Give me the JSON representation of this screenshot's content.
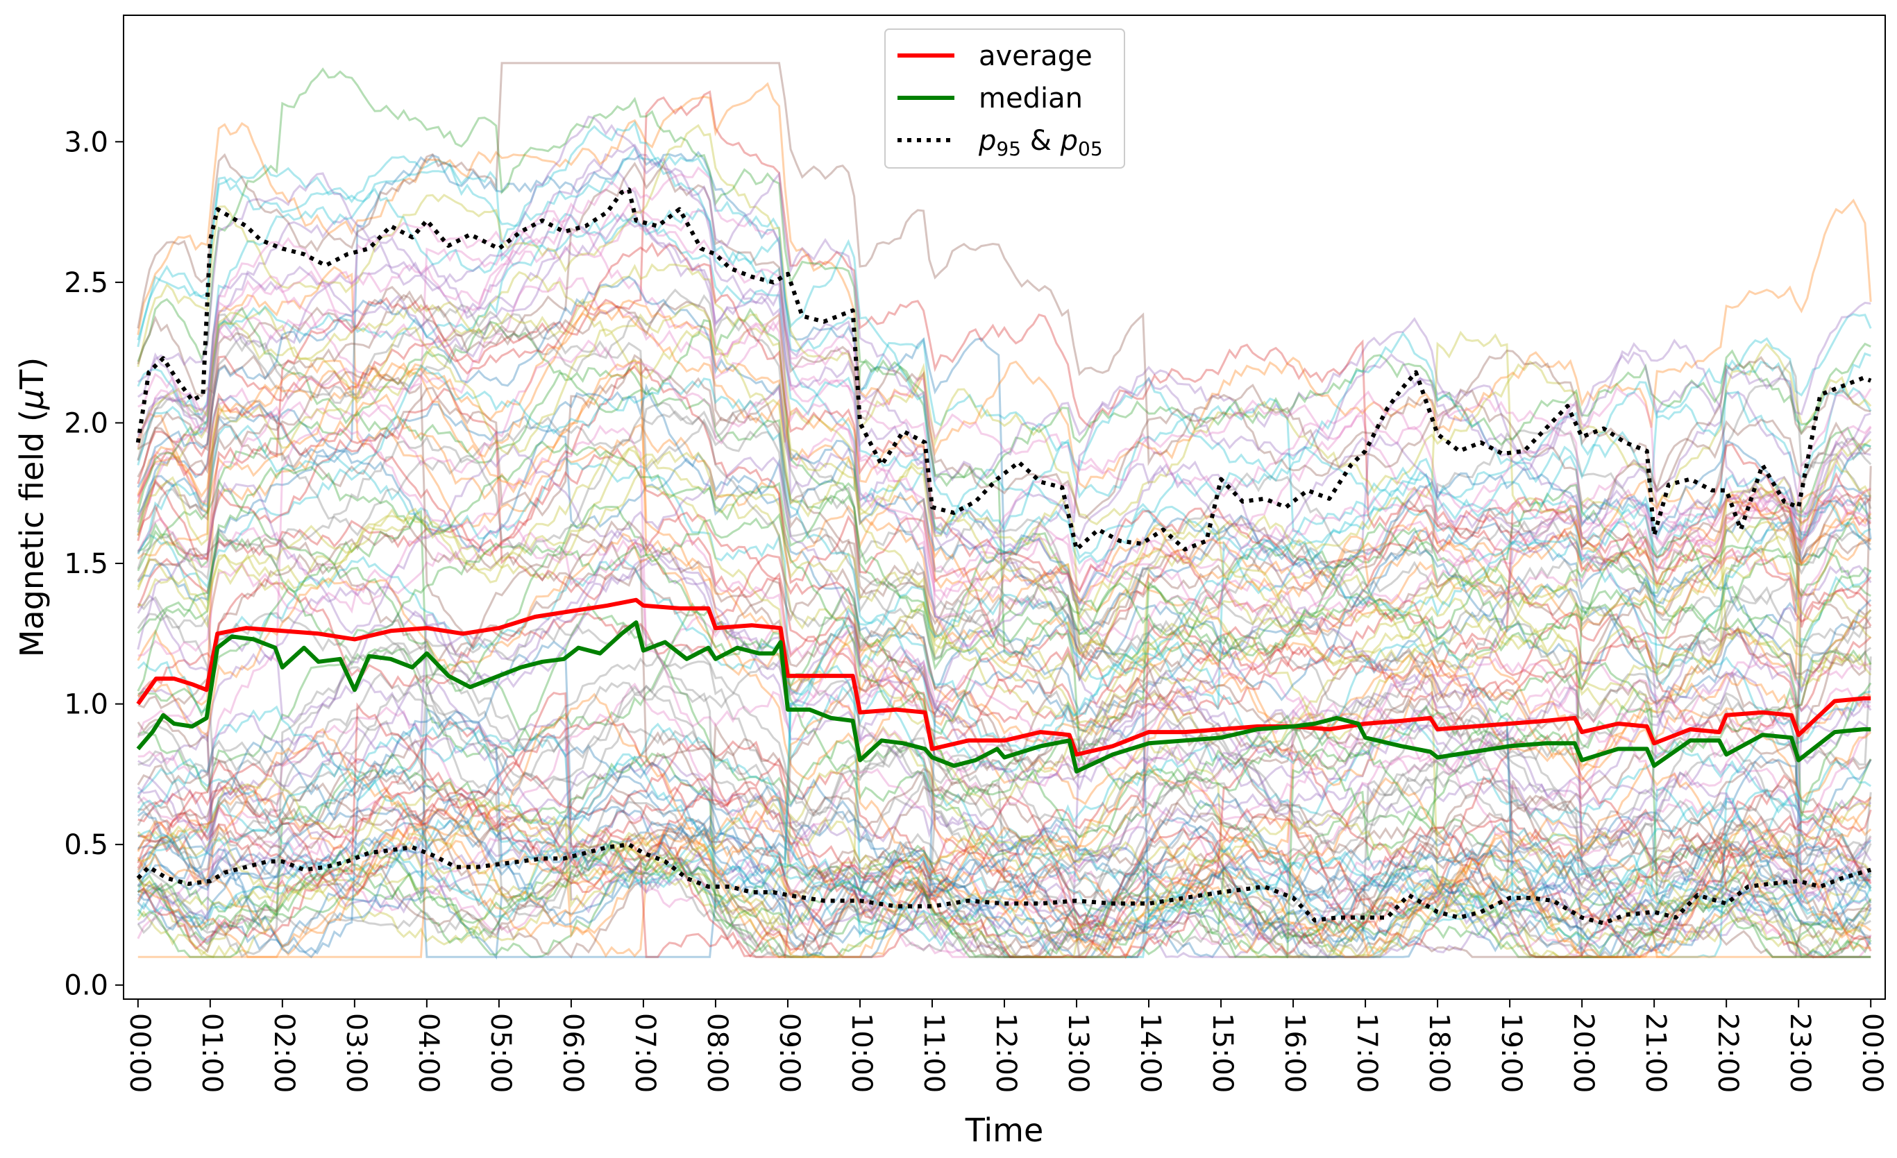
{
  "chart_data": {
    "type": "line",
    "xlabel": "Time",
    "ylabel": "Magnetic field (µT)",
    "ylabel_parts": {
      "pre": "Magnetic field (",
      "mu": "µ",
      "post": "T)"
    },
    "ylim": [
      -0.05,
      3.45
    ],
    "yticks": [
      0.0,
      0.5,
      1.0,
      1.5,
      2.0,
      2.5,
      3.0
    ],
    "ytick_labels": [
      "0.0",
      "0.5",
      "1.0",
      "1.5",
      "2.0",
      "2.5",
      "3.0"
    ],
    "xlim": [
      -0.2,
      24.2
    ],
    "xticks": [
      0,
      1,
      2,
      3,
      4,
      5,
      6,
      7,
      8,
      9,
      10,
      11,
      12,
      13,
      14,
      15,
      16,
      17,
      18,
      19,
      20,
      21,
      22,
      23,
      24
    ],
    "xtick_labels": [
      "00:00",
      "01:00",
      "02:00",
      "03:00",
      "04:00",
      "05:00",
      "06:00",
      "07:00",
      "08:00",
      "09:00",
      "10:00",
      "11:00",
      "12:00",
      "13:00",
      "14:00",
      "15:00",
      "16:00",
      "17:00",
      "18:00",
      "19:00",
      "20:00",
      "21:00",
      "22:00",
      "23:00",
      "00:00"
    ],
    "legend_position": "upper-center",
    "legend": [
      {
        "label": "average",
        "color": "#ff0000",
        "style": "solid"
      },
      {
        "label": "median",
        "color": "#008000",
        "style": "solid"
      },
      {
        "label": "p95 & p05",
        "display": {
          "p1": "p",
          "s1": "95",
          "amp": " & ",
          "p2": "p",
          "s2": "05"
        },
        "color": "#000000",
        "style": "dotted"
      }
    ],
    "background_series": {
      "count": 120,
      "alpha": 0.35,
      "colors": [
        "#1f77b4",
        "#ff7f0e",
        "#2ca02c",
        "#d62728",
        "#9467bd",
        "#8c564b",
        "#e377c2",
        "#7f7f7f",
        "#bcbd22",
        "#17becf"
      ]
    },
    "series": [
      {
        "name": "average",
        "color": "#ff0000",
        "x": [
          0,
          0.25,
          0.5,
          0.75,
          0.95,
          1.1,
          1.5,
          2.0,
          2.5,
          3.0,
          3.5,
          4.0,
          4.5,
          5.0,
          5.5,
          6.0,
          6.5,
          6.9,
          7.0,
          7.5,
          7.9,
          8.0,
          8.5,
          8.9,
          9.0,
          9.5,
          9.9,
          10.0,
          10.5,
          10.9,
          11.0,
          11.5,
          12.0,
          12.5,
          12.9,
          13.0,
          13.5,
          14.0,
          14.5,
          15.0,
          15.5,
          16.0,
          16.5,
          17.0,
          17.5,
          17.9,
          18.0,
          18.5,
          19.0,
          19.5,
          19.9,
          20.0,
          20.5,
          20.9,
          21.0,
          21.5,
          21.9,
          22.0,
          22.5,
          22.9,
          23.0,
          23.5,
          23.9,
          24.0
        ],
        "values": [
          1.0,
          1.09,
          1.09,
          1.07,
          1.05,
          1.25,
          1.27,
          1.26,
          1.25,
          1.23,
          1.26,
          1.27,
          1.25,
          1.27,
          1.31,
          1.33,
          1.35,
          1.37,
          1.35,
          1.34,
          1.34,
          1.27,
          1.28,
          1.27,
          1.1,
          1.1,
          1.1,
          0.97,
          0.98,
          0.97,
          0.84,
          0.87,
          0.87,
          0.9,
          0.89,
          0.82,
          0.85,
          0.9,
          0.9,
          0.91,
          0.92,
          0.92,
          0.91,
          0.93,
          0.94,
          0.95,
          0.91,
          0.92,
          0.93,
          0.94,
          0.95,
          0.9,
          0.93,
          0.92,
          0.86,
          0.91,
          0.9,
          0.96,
          0.97,
          0.96,
          0.89,
          1.01,
          1.02,
          1.02
        ]
      },
      {
        "name": "median",
        "color": "#008000",
        "x": [
          0,
          0.2,
          0.35,
          0.5,
          0.75,
          0.95,
          1.1,
          1.3,
          1.6,
          1.9,
          2.0,
          2.3,
          2.5,
          2.8,
          3.0,
          3.2,
          3.5,
          3.8,
          4.0,
          4.3,
          4.6,
          4.8,
          5.0,
          5.3,
          5.6,
          5.9,
          6.1,
          6.4,
          6.7,
          6.9,
          7.0,
          7.3,
          7.6,
          7.9,
          8.0,
          8.3,
          8.6,
          8.8,
          8.9,
          9.0,
          9.3,
          9.6,
          9.9,
          10.0,
          10.3,
          10.6,
          10.9,
          11.0,
          11.3,
          11.6,
          11.9,
          12.0,
          12.5,
          12.9,
          13.0,
          13.5,
          14.0,
          14.5,
          15.0,
          15.5,
          16.0,
          16.3,
          16.6,
          16.9,
          17.0,
          17.5,
          17.9,
          18.0,
          18.5,
          19.0,
          19.5,
          19.9,
          20.0,
          20.5,
          20.9,
          21.0,
          21.5,
          21.9,
          22.0,
          22.5,
          22.9,
          23.0,
          23.5,
          23.9,
          24.0
        ],
        "values": [
          0.84,
          0.9,
          0.96,
          0.93,
          0.92,
          0.95,
          1.2,
          1.24,
          1.23,
          1.2,
          1.13,
          1.2,
          1.15,
          1.16,
          1.05,
          1.17,
          1.16,
          1.13,
          1.18,
          1.1,
          1.06,
          1.08,
          1.1,
          1.13,
          1.15,
          1.16,
          1.2,
          1.18,
          1.25,
          1.29,
          1.19,
          1.22,
          1.16,
          1.2,
          1.16,
          1.2,
          1.18,
          1.18,
          1.22,
          0.98,
          0.98,
          0.95,
          0.94,
          0.8,
          0.87,
          0.86,
          0.84,
          0.81,
          0.78,
          0.8,
          0.84,
          0.81,
          0.85,
          0.87,
          0.76,
          0.82,
          0.86,
          0.87,
          0.88,
          0.91,
          0.92,
          0.93,
          0.95,
          0.93,
          0.88,
          0.85,
          0.83,
          0.81,
          0.83,
          0.85,
          0.86,
          0.86,
          0.8,
          0.84,
          0.84,
          0.78,
          0.87,
          0.87,
          0.82,
          0.89,
          0.88,
          0.8,
          0.9,
          0.91,
          0.91
        ]
      },
      {
        "name": "p95",
        "color": "#000000",
        "x": [
          0,
          0.15,
          0.35,
          0.5,
          0.75,
          0.9,
          1.0,
          1.1,
          1.3,
          1.5,
          1.7,
          2.0,
          2.3,
          2.6,
          2.9,
          3.2,
          3.5,
          3.8,
          4.0,
          4.3,
          4.6,
          5.0,
          5.3,
          5.6,
          5.9,
          6.2,
          6.5,
          6.7,
          6.8,
          6.9,
          7.2,
          7.5,
          7.8,
          8.0,
          8.2,
          8.5,
          8.8,
          9.0,
          9.2,
          9.5,
          9.7,
          9.9,
          10.0,
          10.3,
          10.6,
          10.9,
          11.0,
          11.3,
          11.6,
          11.9,
          12.2,
          12.5,
          12.8,
          13.0,
          13.3,
          13.6,
          13.9,
          14.2,
          14.5,
          14.8,
          15.0,
          15.3,
          15.6,
          15.9,
          16.2,
          16.5,
          16.8,
          17.0,
          17.3,
          17.5,
          17.7,
          18.0,
          18.3,
          18.6,
          18.9,
          19.2,
          19.5,
          19.8,
          20.0,
          20.3,
          20.6,
          20.9,
          21.0,
          21.2,
          21.5,
          21.8,
          22.0,
          22.2,
          22.5,
          22.8,
          23.0,
          23.3,
          23.6,
          23.9,
          24.0
        ],
        "values": [
          1.93,
          2.18,
          2.23,
          2.17,
          2.08,
          2.1,
          2.65,
          2.76,
          2.73,
          2.7,
          2.65,
          2.62,
          2.6,
          2.56,
          2.6,
          2.62,
          2.7,
          2.66,
          2.72,
          2.63,
          2.67,
          2.62,
          2.68,
          2.72,
          2.68,
          2.7,
          2.75,
          2.82,
          2.83,
          2.72,
          2.7,
          2.76,
          2.62,
          2.6,
          2.55,
          2.52,
          2.5,
          2.53,
          2.38,
          2.36,
          2.38,
          2.4,
          2.0,
          1.85,
          1.97,
          1.93,
          1.7,
          1.68,
          1.72,
          1.8,
          1.86,
          1.79,
          1.77,
          1.55,
          1.62,
          1.58,
          1.57,
          1.62,
          1.55,
          1.58,
          1.8,
          1.72,
          1.73,
          1.7,
          1.76,
          1.73,
          1.85,
          1.9,
          2.05,
          2.12,
          2.18,
          1.96,
          1.9,
          1.93,
          1.89,
          1.9,
          1.98,
          2.06,
          1.95,
          1.98,
          1.93,
          1.9,
          1.6,
          1.78,
          1.8,
          1.76,
          1.76,
          1.62,
          1.85,
          1.72,
          1.7,
          2.1,
          2.13,
          2.16,
          2.15
        ]
      },
      {
        "name": "p05",
        "color": "#000000",
        "x": [
          0,
          0.15,
          0.4,
          0.7,
          1.0,
          1.2,
          1.5,
          1.8,
          2.0,
          2.3,
          2.6,
          2.9,
          3.2,
          3.5,
          3.8,
          4.1,
          4.4,
          4.7,
          5.0,
          5.3,
          5.6,
          5.9,
          6.2,
          6.5,
          6.8,
          7.0,
          7.3,
          7.6,
          7.9,
          8.2,
          8.5,
          8.8,
          9.0,
          9.5,
          10.0,
          10.5,
          11.0,
          11.5,
          12.0,
          12.5,
          13.0,
          13.5,
          14.0,
          14.5,
          15.0,
          15.3,
          15.6,
          16.0,
          16.3,
          16.6,
          17.0,
          17.3,
          17.6,
          18.0,
          18.3,
          18.6,
          19.0,
          19.3,
          19.6,
          20.0,
          20.3,
          20.6,
          21.0,
          21.3,
          21.6,
          22.0,
          22.3,
          22.6,
          23.0,
          23.3,
          23.6,
          24.0
        ],
        "values": [
          0.38,
          0.42,
          0.38,
          0.36,
          0.37,
          0.4,
          0.42,
          0.44,
          0.44,
          0.41,
          0.42,
          0.44,
          0.47,
          0.48,
          0.49,
          0.46,
          0.42,
          0.42,
          0.43,
          0.44,
          0.45,
          0.45,
          0.47,
          0.49,
          0.5,
          0.47,
          0.44,
          0.38,
          0.35,
          0.35,
          0.33,
          0.33,
          0.32,
          0.3,
          0.3,
          0.28,
          0.28,
          0.3,
          0.29,
          0.29,
          0.3,
          0.29,
          0.29,
          0.31,
          0.33,
          0.34,
          0.35,
          0.31,
          0.23,
          0.24,
          0.24,
          0.24,
          0.32,
          0.26,
          0.24,
          0.26,
          0.31,
          0.31,
          0.3,
          0.24,
          0.22,
          0.25,
          0.26,
          0.24,
          0.32,
          0.29,
          0.35,
          0.36,
          0.37,
          0.35,
          0.38,
          0.41
        ]
      }
    ]
  }
}
